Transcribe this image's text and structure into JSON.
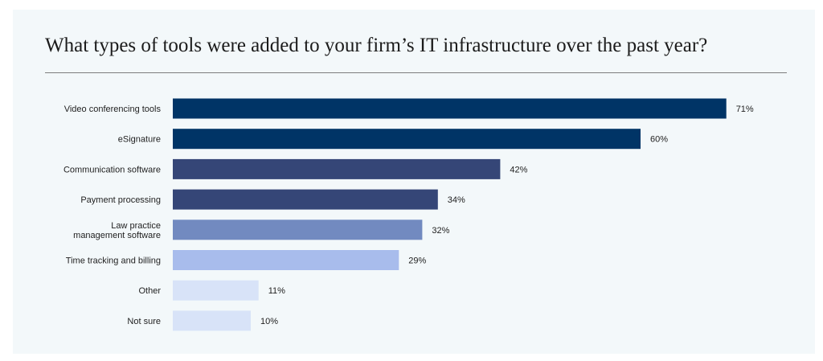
{
  "chart_data": {
    "type": "bar",
    "orientation": "horizontal",
    "title": "What types of tools were added to your firm’s IT infrastructure over the past year?",
    "categories": [
      "Video conferencing tools",
      "eSignature",
      "Communication software",
      "Payment processing",
      "Law practice management software",
      "Time tracking and billing",
      "Other",
      "Not sure"
    ],
    "category_lines": [
      [
        "Video conferencing tools"
      ],
      [
        "eSignature"
      ],
      [
        "Communication software"
      ],
      [
        "Payment processing"
      ],
      [
        "Law practice",
        "management software"
      ],
      [
        "Time tracking and billing"
      ],
      [
        "Other"
      ],
      [
        "Not sure"
      ]
    ],
    "values": [
      71,
      60,
      42,
      34,
      32,
      29,
      11,
      10
    ],
    "value_labels": [
      "71%",
      "60%",
      "42%",
      "34%",
      "32%",
      "29%",
      "11%",
      "10%"
    ],
    "unit": "%",
    "xlim": [
      0,
      100
    ],
    "grid": false,
    "legend": "none",
    "bar_colors": [
      "#003466",
      "#003466",
      "#354677",
      "#354677",
      "#728ac0",
      "#a8bcec",
      "#d8e3f8",
      "#d8e3f8"
    ]
  },
  "colors": {
    "background": "#f3f8fa",
    "title_text": "#1b1b1b",
    "rule": "#7d7d7d"
  }
}
